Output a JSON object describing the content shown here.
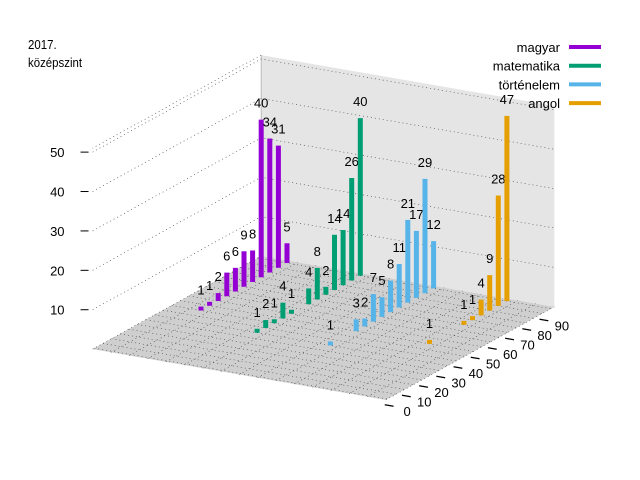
{
  "chart_data": {
    "type": "bar",
    "subtype": "3d-bar",
    "title_line1": "2017.",
    "title_line2": "középszint",
    "xlabel": "",
    "ylabel": "",
    "zlabel": "",
    "x_ticks": [
      "0",
      "10",
      "20",
      "30",
      "40",
      "50",
      "60",
      "70",
      "80",
      "90"
    ],
    "z_ticks": [
      "10",
      "20",
      "30",
      "40",
      "50"
    ],
    "zlim": [
      0,
      51
    ],
    "grid": true,
    "legend_position": "top-right",
    "series": [
      {
        "name": "magyar",
        "color": "#9400d3",
        "bars": [
          [
            50,
            1
          ],
          [
            55,
            1
          ],
          [
            60,
            2
          ],
          [
            65,
            6
          ],
          [
            70,
            6
          ],
          [
            75,
            9
          ],
          [
            80,
            8
          ],
          [
            85,
            40
          ],
          [
            90,
            34
          ],
          [
            95,
            31
          ],
          [
            100,
            5
          ]
        ]
      },
      {
        "name": "matematika",
        "color": "#009e73",
        "bars": [
          [
            40,
            1
          ],
          [
            45,
            2
          ],
          [
            50,
            1
          ],
          [
            55,
            4
          ],
          [
            60,
            1
          ],
          [
            70,
            4
          ],
          [
            75,
            8
          ],
          [
            80,
            2
          ],
          [
            85,
            14
          ],
          [
            90,
            14
          ],
          [
            95,
            26
          ],
          [
            100,
            40
          ]
        ]
      },
      {
        "name": "történelem",
        "color": "#56b4e9",
        "bars": [
          [
            40,
            1
          ],
          [
            55,
            3
          ],
          [
            60,
            2
          ],
          [
            65,
            7
          ],
          [
            70,
            5
          ],
          [
            75,
            8
          ],
          [
            80,
            11
          ],
          [
            85,
            21
          ],
          [
            90,
            17
          ],
          [
            95,
            29
          ],
          [
            100,
            12
          ]
        ]
      },
      {
        "name": "angol",
        "color": "#e69f00",
        "bars": [
          [
            55,
            1
          ],
          [
            75,
            1
          ],
          [
            80,
            1
          ],
          [
            85,
            4
          ],
          [
            90,
            9
          ],
          [
            95,
            28
          ],
          [
            100,
            47
          ]
        ]
      }
    ]
  }
}
